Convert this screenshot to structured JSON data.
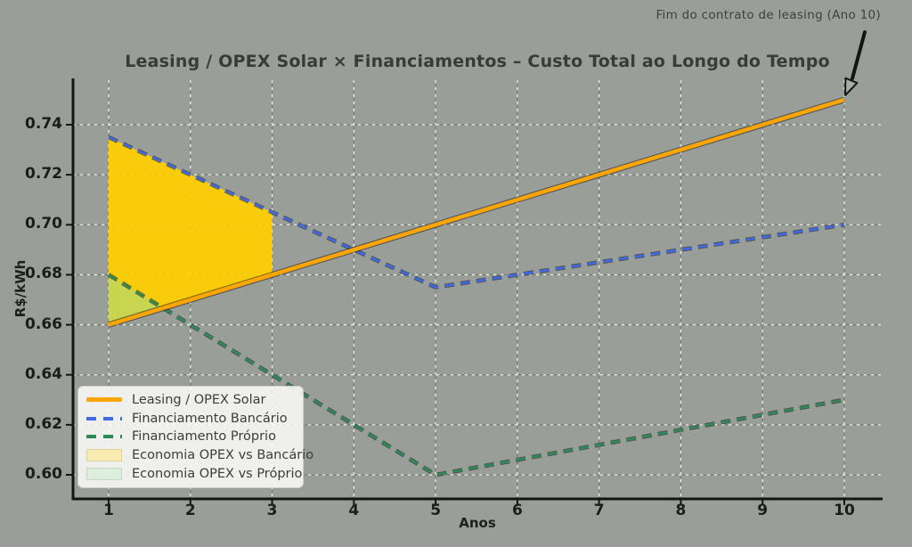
{
  "colors": {
    "background": "#999e98",
    "spine": "#141414",
    "grid_light": "#f2f4ec",
    "grid_dark": "#46584a",
    "arrow": "#141414",
    "arrowhead_fill": "#a9aca7",
    "title_text": "#3a3a3a",
    "tick_text": "#1c1c1c",
    "legend_bg": "#fbfbf8"
  },
  "chart_data": {
    "type": "line",
    "title": "Leasing / OPEX Solar × Financiamentos – Custo Total ao Longo do Tempo",
    "xlabel": "Anos",
    "ylabel": "R$/kWh",
    "x": [
      1,
      2,
      3,
      4,
      5,
      6,
      7,
      8,
      9,
      10
    ],
    "xticks": [
      1,
      2,
      3,
      4,
      5,
      6,
      7,
      8,
      9,
      10
    ],
    "yticks": [
      0.6,
      0.62,
      0.64,
      0.66,
      0.68,
      0.7,
      0.72,
      0.74
    ],
    "xlim": [
      0.56,
      10.46
    ],
    "ylim": [
      0.59,
      0.7575
    ],
    "grid": true,
    "series": [
      {
        "name": "Leasing / OPEX Solar",
        "color": "#FFA500",
        "style": "solid",
        "width": 4.5,
        "values": [
          0.66,
          0.67,
          0.68,
          0.69,
          0.7,
          0.71,
          0.72,
          0.73,
          0.74,
          0.75
        ]
      },
      {
        "name": "Financiamento Bancário",
        "color": "#4169E1",
        "style": "dashed",
        "width": 2.6,
        "values": [
          0.735,
          0.72,
          0.705,
          0.69,
          0.675,
          0.68,
          0.685,
          0.69,
          0.695,
          0.7
        ]
      },
      {
        "name": "Financiamento Próprio",
        "color": "#2E8B57",
        "style": "dashed",
        "width": 2.6,
        "values": [
          0.68,
          0.66,
          0.64,
          0.62,
          0.6,
          0.606,
          0.612,
          0.618,
          0.624,
          0.63
        ]
      }
    ],
    "fills": [
      {
        "name": "Economia OPEX vs Bancário",
        "color": "rgba(255,208,0,0.93)",
        "upper": "Financiamento Bancário",
        "lower": "Leasing / OPEX Solar",
        "x_range": [
          1,
          3
        ]
      },
      {
        "name": "Economia OPEX vs Próprio",
        "color": "rgba(150,222,150,0.50)",
        "upper": "Financiamento Próprio",
        "lower": "Leasing / OPEX Solar",
        "x_range": [
          1,
          1.667
        ]
      }
    ],
    "legend": {
      "position": "lower left",
      "entries": [
        {
          "label": "Leasing / OPEX Solar",
          "swatch": "line-solid",
          "color": "#FFA500"
        },
        {
          "label": "Financiamento Bancário",
          "swatch": "line-dashed",
          "color": "#4169E1"
        },
        {
          "label": "Financiamento Próprio",
          "swatch": "line-dashed",
          "color": "#2E8B57"
        },
        {
          "label": "Economia OPEX vs Bancário",
          "swatch": "patch",
          "color": "#f7ebb2"
        },
        {
          "label": "Economia OPEX vs Próprio",
          "swatch": "patch",
          "color": "#ddefdc"
        }
      ]
    },
    "annotation": {
      "text": "Fim do contrato de leasing (Ano 10)",
      "xy": [
        10,
        0.75
      ]
    }
  }
}
